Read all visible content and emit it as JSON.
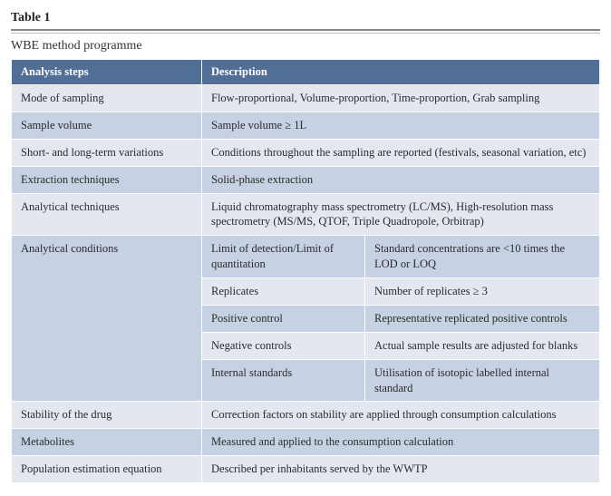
{
  "table_label": "Table 1",
  "subtitle": "WBE method programme",
  "headers": {
    "steps": "Analysis steps",
    "desc": "Description"
  },
  "rows": {
    "mode": {
      "step": "Mode of sampling",
      "desc": "Flow-proportional, Volume-proportion, Time-proportion, Grab sampling"
    },
    "volume": {
      "step": "Sample volume",
      "desc": "Sample volume ≥ 1L"
    },
    "variation": {
      "step": "Short- and long-term variations",
      "desc": "Conditions throughout the sampling are reported (festivals, seasonal variation, etc)"
    },
    "extract": {
      "step": "Extraction techniques",
      "desc": "Solid-phase extraction"
    },
    "analytic": {
      "step": "Analytical techniques",
      "desc": "Liquid chromatography mass spectrometry (LC/MS), High-resolution mass spectrometry (MS/MS, QTOF, Triple Quadropole, Orbitrap)"
    },
    "cond": {
      "step": "Analytical conditions",
      "items": {
        "lod": {
          "label": "Limit of detection/Limit of quantitation",
          "value": "Standard concentrations are <10 times the LOD or LOQ"
        },
        "rep": {
          "label": "Replicates",
          "value": "Number of replicates ≥ 3"
        },
        "pos": {
          "label": "Positive control",
          "value": "Representative replicated positive controls"
        },
        "neg": {
          "label": "Negative controls",
          "value": "Actual sample results are adjusted for blanks"
        },
        "istd": {
          "label": "Internal standards",
          "value": "Utilisation of isotopic labelled internal standard"
        }
      }
    },
    "stability": {
      "step": "Stability of the drug",
      "desc": "Correction factors on stability are applied through consumption calculations"
    },
    "metab": {
      "step": "Metabolites",
      "desc": "Measured and applied to the consumption calculation"
    },
    "popeq": {
      "step": "Population estimation equation",
      "desc": "Described per inhabitants served by the WWTP"
    }
  },
  "colors": {
    "header_bg": "#516e96",
    "light_bg": "#e2e7f0",
    "med_bg": "#c6d1e3"
  }
}
